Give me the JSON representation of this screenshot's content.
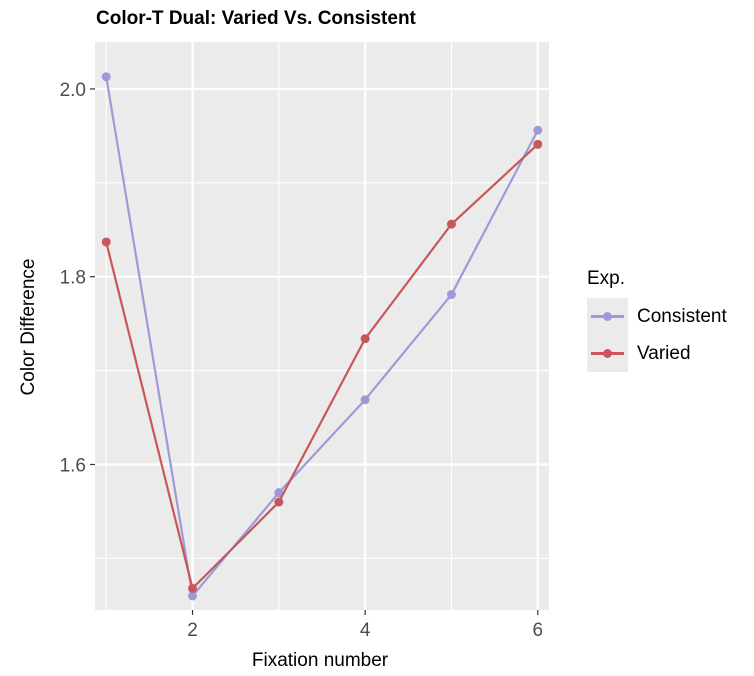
{
  "chart_data": {
    "type": "line",
    "title": "Color-T Dual: Varied Vs. Consistent",
    "xlabel": "Fixation number",
    "ylabel": "Color Difference",
    "x": [
      1,
      2,
      3,
      4,
      5,
      6
    ],
    "xlim": [
      0.87,
      6.13
    ],
    "ylim": [
      1.445,
      2.05
    ],
    "x_ticks": [
      2,
      4,
      6
    ],
    "y_ticks": [
      1.6,
      1.8,
      2.0
    ],
    "x_tick_labels": [
      "2",
      "4",
      "6"
    ],
    "y_tick_labels": [
      "1.6",
      "1.8",
      "2.0"
    ],
    "grid": true,
    "legend": {
      "title": "Exp.",
      "position": "right"
    },
    "series": [
      {
        "name": "Consistent",
        "color": "#9e9ad7",
        "values": [
          2.013,
          1.46,
          1.57,
          1.669,
          1.781,
          1.956
        ]
      },
      {
        "name": "Varied",
        "color": "#c8575a",
        "values": [
          1.837,
          1.468,
          1.56,
          1.734,
          1.856,
          1.941
        ]
      }
    ]
  }
}
